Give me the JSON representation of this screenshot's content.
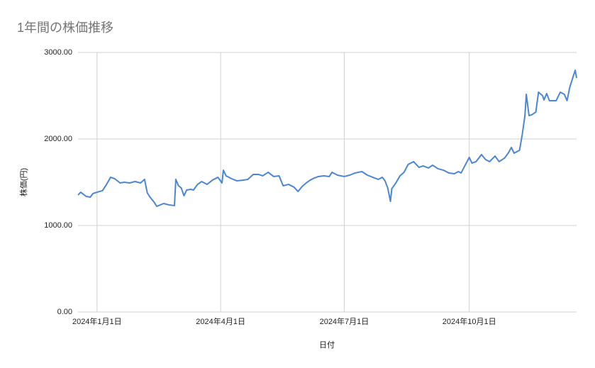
{
  "chart_data": {
    "type": "line",
    "title": "1年間の株価推移",
    "xlabel": "日付",
    "ylabel": "株価(円)",
    "color": "#4a86d4",
    "grid": true,
    "xlim": [
      "2023-12-18",
      "2024-12-19"
    ],
    "xticks": [
      {
        "value": "2024-01-01",
        "label": "2024年1月1日"
      },
      {
        "value": "2024-04-01",
        "label": "2024年4月1日"
      },
      {
        "value": "2024-07-01",
        "label": "2024年7月1日"
      },
      {
        "value": "2024-10-01",
        "label": "2024年10月1日"
      }
    ],
    "ylim": [
      0,
      3000
    ],
    "yticks": [
      {
        "value": 0,
        "label": "0.00"
      },
      {
        "value": 1000,
        "label": "1000.00"
      },
      {
        "value": 2000,
        "label": "2000.00"
      },
      {
        "value": 3000,
        "label": "3000.00"
      }
    ],
    "x": [
      "2023-12-18",
      "2023-12-20",
      "2023-12-24",
      "2023-12-27",
      "2023-12-29",
      "2024-01-01",
      "2024-01-05",
      "2024-01-08",
      "2024-01-11",
      "2024-01-14",
      "2024-01-18",
      "2024-01-21",
      "2024-01-25",
      "2024-01-29",
      "2024-02-02",
      "2024-02-05",
      "2024-02-07",
      "2024-02-09",
      "2024-02-12",
      "2024-02-14",
      "2024-02-19",
      "2024-02-23",
      "2024-02-27",
      "2024-02-28",
      "2024-03-01",
      "2024-03-03",
      "2024-03-05",
      "2024-03-07",
      "2024-03-10",
      "2024-03-12",
      "2024-03-15",
      "2024-03-18",
      "2024-03-22",
      "2024-03-26",
      "2024-03-30",
      "2024-04-02",
      "2024-04-03",
      "2024-04-05",
      "2024-04-09",
      "2024-04-13",
      "2024-04-18",
      "2024-04-21",
      "2024-04-25",
      "2024-04-29",
      "2024-05-02",
      "2024-05-06",
      "2024-05-10",
      "2024-05-14",
      "2024-05-17",
      "2024-05-21",
      "2024-05-25",
      "2024-05-28",
      "2024-05-31",
      "2024-06-03",
      "2024-06-06",
      "2024-06-09",
      "2024-06-12",
      "2024-06-16",
      "2024-06-20",
      "2024-06-22",
      "2024-06-26",
      "2024-07-01",
      "2024-07-05",
      "2024-07-09",
      "2024-07-14",
      "2024-07-18",
      "2024-07-22",
      "2024-07-26",
      "2024-07-29",
      "2024-07-31",
      "2024-08-02",
      "2024-08-04",
      "2024-08-05",
      "2024-08-08",
      "2024-08-11",
      "2024-08-14",
      "2024-08-17",
      "2024-08-21",
      "2024-08-25",
      "2024-08-28",
      "2024-09-01",
      "2024-09-04",
      "2024-09-08",
      "2024-09-12",
      "2024-09-16",
      "2024-09-20",
      "2024-09-23",
      "2024-09-25",
      "2024-09-28",
      "2024-10-01",
      "2024-10-03",
      "2024-10-06",
      "2024-10-10",
      "2024-10-13",
      "2024-10-16",
      "2024-10-20",
      "2024-10-23",
      "2024-10-27",
      "2024-10-30",
      "2024-11-01",
      "2024-11-03",
      "2024-11-07",
      "2024-11-09",
      "2024-11-11",
      "2024-11-12",
      "2024-11-14",
      "2024-11-16",
      "2024-11-19",
      "2024-11-21",
      "2024-11-24",
      "2024-11-25",
      "2024-11-27",
      "2024-11-29",
      "2024-12-02",
      "2024-12-04",
      "2024-12-07",
      "2024-12-10",
      "2024-12-12",
      "2024-12-14",
      "2024-12-16",
      "2024-12-18",
      "2024-12-19"
    ],
    "values": [
      1352,
      1385,
      1336,
      1328,
      1369,
      1385,
      1402,
      1475,
      1557,
      1541,
      1492,
      1500,
      1492,
      1508,
      1492,
      1533,
      1377,
      1328,
      1270,
      1221,
      1254,
      1238,
      1230,
      1533,
      1459,
      1434,
      1344,
      1410,
      1418,
      1410,
      1475,
      1508,
      1475,
      1525,
      1557,
      1492,
      1639,
      1574,
      1541,
      1516,
      1525,
      1533,
      1590,
      1590,
      1574,
      1615,
      1566,
      1574,
      1459,
      1475,
      1443,
      1393,
      1451,
      1492,
      1525,
      1549,
      1566,
      1574,
      1566,
      1615,
      1582,
      1566,
      1582,
      1607,
      1623,
      1582,
      1557,
      1533,
      1557,
      1516,
      1434,
      1279,
      1426,
      1492,
      1574,
      1615,
      1705,
      1738,
      1672,
      1689,
      1664,
      1697,
      1656,
      1639,
      1607,
      1598,
      1623,
      1607,
      1697,
      1787,
      1721,
      1738,
      1820,
      1762,
      1738,
      1803,
      1738,
      1779,
      1844,
      1902,
      1836,
      1869,
      2049,
      2270,
      2516,
      2270,
      2279,
      2311,
      2541,
      2500,
      2451,
      2525,
      2443,
      2443,
      2443,
      2541,
      2516,
      2443,
      2598,
      2697,
      2795,
      2705
    ]
  }
}
